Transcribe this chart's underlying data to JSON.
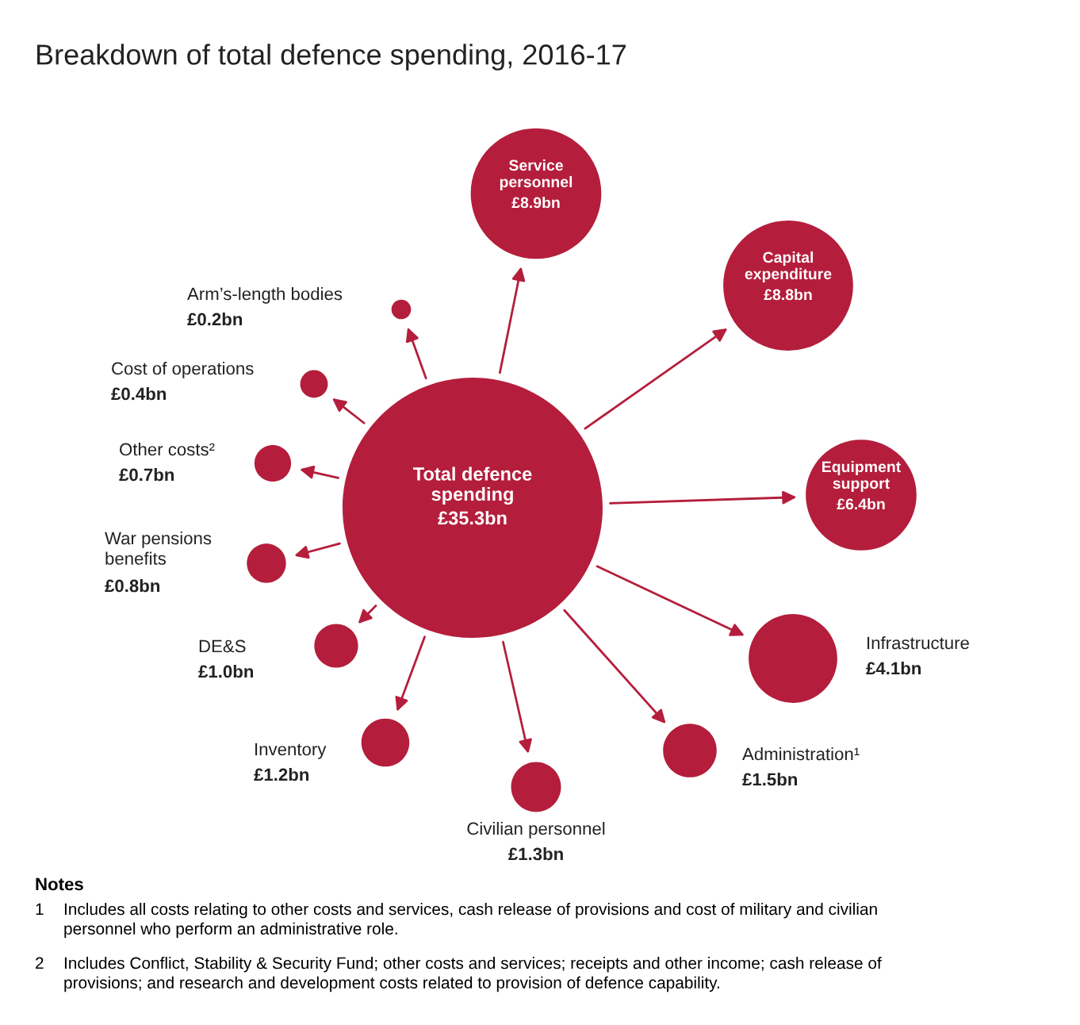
{
  "chart_data": {
    "type": "other",
    "title": "Breakdown of total defence spending, 2016-17",
    "color": "#b41e3c",
    "categories": [
      "Total defence\nspending",
      "Service\npersonnel",
      "Capital\nexpenditure",
      "Equipment\nsupport",
      "Infrastructure",
      "Administration¹",
      "Civilian personnel",
      "Inventory",
      "DE&S",
      "War pensions\nbenefits",
      "Other costs²",
      "Cost of operations",
      "Arm’s-length bodies"
    ],
    "values": [
      35.3,
      8.9,
      8.8,
      6.4,
      4.1,
      1.5,
      1.3,
      1.2,
      1.0,
      0.8,
      0.7,
      0.4,
      0.2
    ],
    "value_labels": [
      "£35.3bn",
      "£8.9bn",
      "£8.8bn",
      "£6.4bn",
      "£4.1bn",
      "£1.5bn",
      "£1.3bn",
      "£1.2bn",
      "£1.0bn",
      "£0.8bn",
      "£0.7bn",
      "£0.4bn",
      "£0.2bn"
    ],
    "annotations": [
      "Notes",
      "1\tIncludes all costs relating to other costs and services, cash release of provisions and cost of military and civilian\npersonnel who perform an administrative role.",
      "2\tIncludes Conflict, Stability & Security Fund; other costs and services; receipts and other income; cash release of\nprovisions; and research and development costs related to provision of defence capability."
    ]
  }
}
